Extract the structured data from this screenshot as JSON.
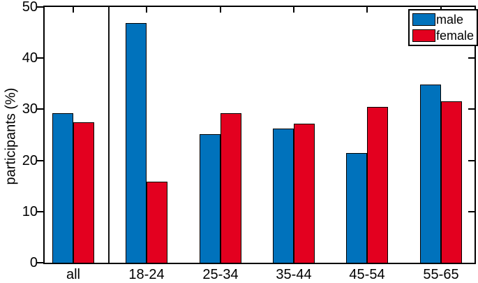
{
  "figure": {
    "ylabel": "participants (%)"
  },
  "chart_data": {
    "type": "bar",
    "title": "",
    "xlabel": "",
    "ylabel": "participants (%)",
    "categories": [
      "all",
      "18-24",
      "25-34",
      "35-44",
      "45-54",
      "55-65"
    ],
    "series": [
      {
        "name": "male",
        "color": "#0072BC",
        "edge_color": "#000000",
        "values": [
          29.2,
          46.9,
          25.1,
          26.2,
          21.4,
          34.8
        ]
      },
      {
        "name": "female",
        "color": "#E3001F",
        "edge_color": "#000000",
        "values": [
          27.4,
          15.9,
          29.3,
          27.2,
          30.4,
          31.5
        ]
      }
    ],
    "ylim": [
      0,
      50
    ],
    "yticks": [
      0,
      10,
      20,
      30,
      40,
      50
    ],
    "grid": false,
    "legend_position": "top-right",
    "separator_after_category": "all",
    "axis_style": "box"
  }
}
